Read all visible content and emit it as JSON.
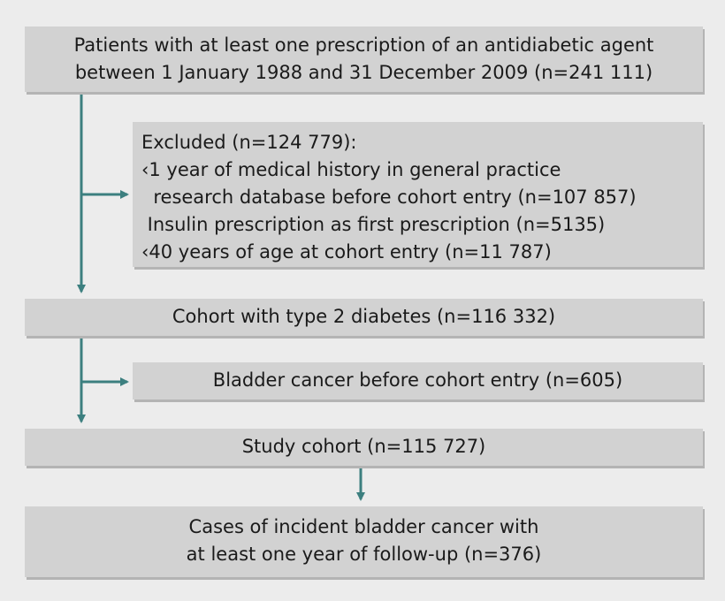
{
  "flowchart": {
    "start": {
      "lines": [
        "Patients with at least one prescription of an antidiabetic agent",
        "between 1 January 1988 and 31 December 2009 (n=241 111)"
      ]
    },
    "exclusion1": {
      "title": "Excluded (n=124 779):",
      "items": [
        "‹1 year of medical history in general practice",
        "  research database before cohort entry (n=107 857)",
        " Insulin prescription as first prescription (n=5135)",
        "‹40 years of age at cohort entry (n=11 787)"
      ]
    },
    "cohort": {
      "label": "Cohort with type 2 diabetes (n=116 332)"
    },
    "exclusion2": {
      "label": "Bladder cancer before cohort entry (n=605)"
    },
    "study": {
      "label": "Study cohort (n=115 727)"
    },
    "cases": {
      "lines": [
        "Cases of incident bladder cancer with",
        "at least one year of follow-up (n=376)"
      ]
    }
  },
  "colors": {
    "arrow": "#3c7f7f",
    "box": "#d2d2d2",
    "background": "#ececec"
  }
}
